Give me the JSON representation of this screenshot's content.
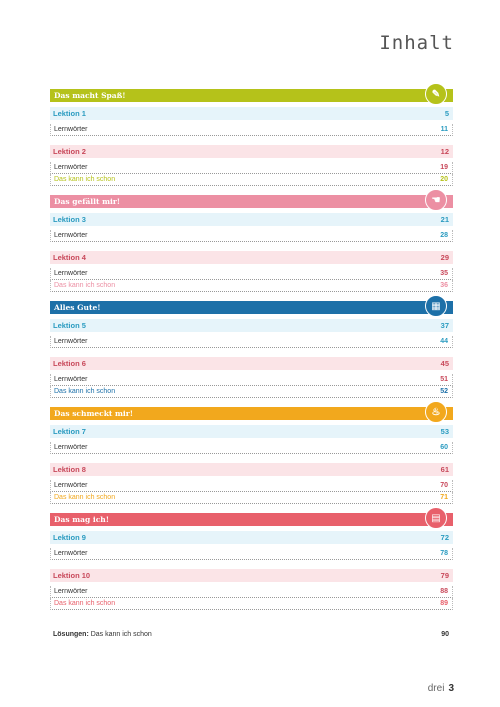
{
  "page_title": "Inhalt",
  "footer": {
    "word": "drei",
    "number": "3"
  },
  "units": [
    {
      "title": "Das macht Spaß!",
      "color": "#b5c21a",
      "icon": "pencil-icon",
      "glyph": "✎",
      "lessons": [
        {
          "label": "Lektion 1",
          "page": "5",
          "bg": "#e6f4fa",
          "color": "#2a9bc0",
          "items": [
            {
              "label": "Lernwörter",
              "page": "11",
              "color": "#333",
              "pagecolor": "#2a9bc0"
            }
          ]
        },
        {
          "label": "Lektion 2",
          "page": "12",
          "bg": "#fbe4e7",
          "color": "#c8485a",
          "items": [
            {
              "label": "Lernwörter",
              "page": "19",
              "color": "#333",
              "pagecolor": "#c8485a"
            },
            {
              "label": "Das kann ich schon",
              "page": "20",
              "color": "#b5c21a",
              "pagecolor": "#b5c21a"
            }
          ]
        }
      ]
    },
    {
      "title": "Das gefällt mir!",
      "color": "#ec8fa3",
      "icon": "hand-icon",
      "glyph": "☚",
      "lessons": [
        {
          "label": "Lektion 3",
          "page": "21",
          "bg": "#e6f4fa",
          "color": "#2a9bc0",
          "items": [
            {
              "label": "Lernwörter",
              "page": "28",
              "color": "#333",
              "pagecolor": "#2a9bc0"
            }
          ]
        },
        {
          "label": "Lektion 4",
          "page": "29",
          "bg": "#fbe4e7",
          "color": "#c8485a",
          "items": [
            {
              "label": "Lernwörter",
              "page": "35",
              "color": "#333",
              "pagecolor": "#c8485a"
            },
            {
              "label": "Das kann ich schon",
              "page": "36",
              "color": "#ec8fa3",
              "pagecolor": "#ec8fa3"
            }
          ]
        }
      ]
    },
    {
      "title": "Alles Gute!",
      "color": "#1d70a8",
      "icon": "calendar-icon",
      "glyph": "▦",
      "lessons": [
        {
          "label": "Lektion 5",
          "page": "37",
          "bg": "#e6f4fa",
          "color": "#2a9bc0",
          "items": [
            {
              "label": "Lernwörter",
              "page": "44",
              "color": "#333",
              "pagecolor": "#2a9bc0"
            }
          ]
        },
        {
          "label": "Lektion 6",
          "page": "45",
          "bg": "#fbe4e7",
          "color": "#c8485a",
          "items": [
            {
              "label": "Lernwörter",
              "page": "51",
              "color": "#333",
              "pagecolor": "#c8485a"
            },
            {
              "label": "Das kann ich schon",
              "page": "52",
              "color": "#1d70a8",
              "pagecolor": "#1d70a8"
            }
          ]
        }
      ]
    },
    {
      "title": "Das schmeckt mir!",
      "color": "#f2a81d",
      "icon": "cup-icon",
      "glyph": "♨",
      "lessons": [
        {
          "label": "Lektion 7",
          "page": "53",
          "bg": "#e6f4fa",
          "color": "#2a9bc0",
          "items": [
            {
              "label": "Lernwörter",
              "page": "60",
              "color": "#333",
              "pagecolor": "#2a9bc0"
            }
          ]
        },
        {
          "label": "Lektion 8",
          "page": "61",
          "bg": "#fbe4e7",
          "color": "#c8485a",
          "items": [
            {
              "label": "Lernwörter",
              "page": "70",
              "color": "#333",
              "pagecolor": "#c8485a"
            },
            {
              "label": "Das kann ich schon",
              "page": "71",
              "color": "#f2a81d",
              "pagecolor": "#f2a81d"
            }
          ]
        }
      ]
    },
    {
      "title": "Das mag ich!",
      "color": "#e8606b",
      "icon": "book-icon",
      "glyph": "▤",
      "lessons": [
        {
          "label": "Lektion 9",
          "page": "72",
          "bg": "#e6f4fa",
          "color": "#2a9bc0",
          "items": [
            {
              "label": "Lernwörter",
              "page": "78",
              "color": "#333",
              "pagecolor": "#2a9bc0"
            }
          ]
        },
        {
          "label": "Lektion 10",
          "page": "79",
          "bg": "#fbe4e7",
          "color": "#c8485a",
          "items": [
            {
              "label": "Lernwörter",
              "page": "88",
              "color": "#333",
              "pagecolor": "#c8485a"
            },
            {
              "label": "Das kann ich schon",
              "page": "89",
              "color": "#e8606b",
              "pagecolor": "#e8606b"
            }
          ]
        }
      ]
    }
  ],
  "solutions": {
    "label_bold": "Lösungen:",
    "label_rest": " Das kann ich schon",
    "page": "90"
  }
}
